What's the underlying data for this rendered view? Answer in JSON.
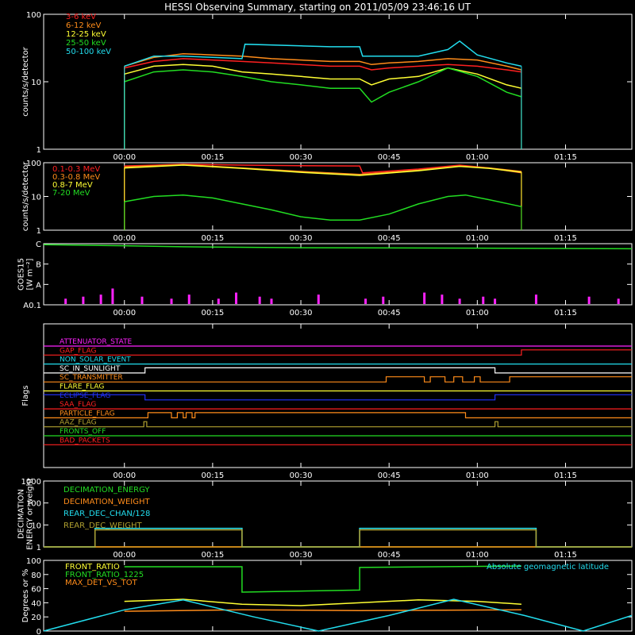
{
  "title": "HESSI Observing Summary, starting on 2011/05/09 23:46:16 UT",
  "time_axis": {
    "range_minutes": [
      -13.73,
      86.27
    ],
    "ticks": [
      {
        "label": "00:00",
        "minutes": 0
      },
      {
        "label": "00:15",
        "minutes": 15
      },
      {
        "label": "00:30",
        "minutes": 30
      },
      {
        "label": "00:45",
        "minutes": 45
      },
      {
        "label": "01:00",
        "minutes": 60
      },
      {
        "label": "01:15",
        "minutes": 75
      }
    ]
  },
  "colors": {
    "red": "#ff2020",
    "orange": "#ff8c1a",
    "yellow": "#ffff33",
    "green": "#22dd22",
    "cyan": "#22ddee",
    "magenta": "#ff22ff",
    "blue": "#2233ff",
    "olive": "#b0a030",
    "lightgreen": "#88ff66",
    "white": "#ffffff"
  },
  "chart_data": [
    {
      "type": "line",
      "ylabel": "counts/s/detector",
      "yscale": "log",
      "ylim": [
        1,
        100
      ],
      "y_ticks": [
        {
          "label": "100",
          "v": 100
        },
        {
          "label": "10",
          "v": 10
        },
        {
          "label": "1",
          "v": 1
        }
      ],
      "legend": "top-left",
      "series": [
        {
          "name": "3-6 keV",
          "color": "red",
          "x": [
            0,
            5,
            10,
            15,
            20,
            25,
            30,
            35,
            40,
            42,
            45,
            50,
            55,
            60,
            65,
            67.5
          ],
          "y": [
            16,
            20,
            22,
            21,
            20,
            19,
            18,
            17,
            17,
            15,
            16,
            17,
            18,
            17,
            15,
            14
          ]
        },
        {
          "name": "6-12 keV",
          "color": "orange",
          "x": [
            0,
            5,
            10,
            15,
            20,
            25,
            30,
            35,
            40,
            42,
            45,
            50,
            55,
            60,
            65,
            67.5
          ],
          "y": [
            17,
            23,
            26,
            25,
            24,
            22,
            21,
            20,
            20,
            18,
            19,
            20,
            22,
            21,
            17,
            15
          ]
        },
        {
          "name": "12-25 keV",
          "color": "yellow",
          "x": [
            0,
            5,
            10,
            15,
            20,
            25,
            30,
            35,
            40,
            42,
            45,
            50,
            55,
            60,
            65,
            67.5
          ],
          "y": [
            13,
            17,
            18,
            17,
            14,
            13,
            12,
            11,
            11,
            9,
            11,
            12,
            16,
            13,
            9,
            8
          ]
        },
        {
          "name": "25-50 keV",
          "color": "green",
          "x": [
            0,
            5,
            10,
            15,
            20,
            25,
            30,
            35,
            40,
            42,
            45,
            50,
            55,
            60,
            65,
            67.5
          ],
          "y": [
            10,
            14,
            15,
            14,
            12,
            10,
            9,
            8,
            8,
            5,
            7,
            10,
            16,
            12,
            7,
            6
          ]
        },
        {
          "name": "50-100 keV",
          "color": "cyan",
          "x": [
            0,
            5,
            10,
            15,
            20,
            20.5,
            30,
            35,
            40,
            40.5,
            50,
            55,
            57,
            60,
            65,
            67.5
          ],
          "y": [
            17,
            24,
            24,
            23,
            22,
            36,
            34,
            33,
            33,
            24,
            24,
            30,
            40,
            25,
            19,
            17
          ]
        }
      ]
    },
    {
      "type": "line",
      "ylabel": "counts/s/detector",
      "yscale": "log",
      "ylim": [
        1,
        100
      ],
      "y_ticks": [
        {
          "label": "100",
          "v": 100
        },
        {
          "label": "10",
          "v": 10
        },
        {
          "label": "1",
          "v": 1
        }
      ],
      "legend": "top-left",
      "series": [
        {
          "name": "0.1-0.3 MeV",
          "color": "red",
          "x": [
            0,
            10,
            20,
            30,
            40,
            40.5,
            50,
            57,
            62,
            67.5
          ],
          "y": [
            80,
            90,
            85,
            82,
            80,
            50,
            65,
            85,
            70,
            50
          ]
        },
        {
          "name": "0.3-0.8 MeV",
          "color": "orange",
          "x": [
            0,
            10,
            20,
            30,
            40,
            50,
            57,
            62,
            67.5
          ],
          "y": [
            75,
            88,
            70,
            55,
            45,
            60,
            80,
            70,
            55
          ]
        },
        {
          "name": "0.8-7 MeV",
          "color": "yellow",
          "x": [
            0,
            10,
            20,
            30,
            40,
            50,
            57,
            62,
            67.5
          ],
          "y": [
            70,
            85,
            68,
            52,
            42,
            58,
            78,
            68,
            52
          ]
        },
        {
          "name": "7-20 MeV",
          "color": "green",
          "x": [
            0,
            5,
            10,
            15,
            20,
            25,
            30,
            35,
            40,
            45,
            50,
            55,
            58,
            62,
            67.5
          ],
          "y": [
            7,
            10,
            11,
            9,
            6,
            4,
            2.5,
            2,
            2,
            3,
            6,
            10,
            11,
            8,
            5
          ]
        }
      ]
    },
    {
      "type": "line",
      "ylabel": "GOES15 [W m⁻²]",
      "y_ticks": [
        {
          "label": "C",
          "v": 4
        },
        {
          "label": "B",
          "v": 3
        },
        {
          "label": "A",
          "v": 2
        },
        {
          "label": "A0.1",
          "v": 1
        }
      ],
      "ylim": [
        1,
        4
      ],
      "series": [
        {
          "name": "GOES",
          "color": "green",
          "x": [
            -13.73,
            0,
            10,
            30,
            60,
            86.27
          ],
          "y": [
            3.95,
            3.9,
            3.85,
            3.8,
            3.78,
            3.75
          ]
        },
        {
          "name": "events",
          "color": "magenta",
          "x": [
            -10,
            -7,
            -4,
            -2,
            3,
            8,
            11,
            16,
            19,
            23,
            25,
            33,
            41,
            44,
            51,
            54,
            57,
            61,
            63,
            70,
            79,
            84
          ],
          "y": [
            1.3,
            1.4,
            1.5,
            1.8,
            1.4,
            1.3,
            1.5,
            1.3,
            1.6,
            1.4,
            1.3,
            1.5,
            1.3,
            1.4,
            1.6,
            1.5,
            1.3,
            1.4,
            1.3,
            1.5,
            1.4,
            1.3
          ]
        }
      ]
    },
    {
      "type": "line",
      "ylabel": "Flags",
      "flags": [
        {
          "name": "ATTENUATOR_STATE",
          "color": "magenta",
          "x": [
            -13.73,
            86.27
          ],
          "y": [
            0,
            0
          ]
        },
        {
          "name": "GAP_FLAG",
          "color": "red",
          "x": [
            -13.73,
            67.5,
            67.5,
            86.27
          ],
          "y": [
            0,
            0,
            1,
            1
          ]
        },
        {
          "name": "NON_SOLAR_EVENT",
          "color": "cyan",
          "x": [
            -13.73,
            86.27
          ],
          "y": [
            0,
            0
          ]
        },
        {
          "name": "SC_IN_SUNLIGHT",
          "color": "white",
          "x": [
            -13.73,
            3.5,
            3.5,
            63,
            63,
            86.27
          ],
          "y": [
            0,
            0,
            1,
            1,
            0,
            0
          ]
        },
        {
          "name": "SC_TRANSMITTER",
          "color": "orange",
          "x": [
            -13.73,
            44.5,
            44.5,
            51,
            51,
            52,
            52,
            54.5,
            54.5,
            56,
            56,
            57.5,
            57.5,
            59.5,
            59.5,
            60.5,
            60.5,
            65.5,
            65.5,
            86.27
          ],
          "y": [
            0,
            0,
            1,
            1,
            0,
            0,
            1,
            1,
            0,
            0,
            1,
            1,
            0,
            0,
            1,
            1,
            0,
            0,
            1,
            1
          ]
        },
        {
          "name": "FLARE_FLAG",
          "color": "yellow",
          "x": [
            -13.73,
            86.27
          ],
          "y": [
            0,
            0
          ]
        },
        {
          "name": "ECLIPSE_FLAG",
          "color": "blue",
          "x": [
            -13.73,
            3.5,
            3.5,
            63,
            63,
            86.27
          ],
          "y": [
            1,
            1,
            0,
            0,
            1,
            1
          ]
        },
        {
          "name": "SAA_FLAG",
          "color": "red",
          "x": [
            -13.73,
            86.27
          ],
          "y": [
            0,
            0
          ]
        },
        {
          "name": "PARTICLE_FLAG",
          "color": "orange",
          "x": [
            -13.73,
            4,
            4,
            8,
            8,
            9,
            9,
            10,
            10,
            10.5,
            10.5,
            11.5,
            11.5,
            12,
            12,
            58,
            58,
            62,
            62,
            86.27
          ],
          "y": [
            0,
            0,
            1,
            1,
            0,
            0,
            1,
            1,
            0,
            0,
            1,
            1,
            0,
            0,
            1,
            1,
            0,
            0,
            0,
            0
          ]
        },
        {
          "name": "AAZ_FLAG",
          "color": "olive",
          "x": [
            -13.73,
            3.3,
            3.3,
            3.8,
            3.8,
            63,
            63,
            63.5,
            63.5,
            86.27
          ],
          "y": [
            0,
            0,
            1,
            1,
            0,
            0,
            1,
            1,
            0,
            0
          ]
        },
        {
          "name": "FRONTS_OFF",
          "color": "green",
          "x": [
            -13.73,
            86.27
          ],
          "y": [
            0,
            0
          ]
        },
        {
          "name": "BAD_PACKETS",
          "color": "red",
          "x": [
            -13.73,
            86.27
          ],
          "y": [
            0,
            0
          ]
        }
      ]
    },
    {
      "type": "line",
      "ylabel": "DECIMATION ENERGY or weight",
      "yscale": "log",
      "ylim": [
        1,
        1000
      ],
      "y_ticks": [
        {
          "label": "1000",
          "v": 1000
        },
        {
          "label": "100",
          "v": 100
        },
        {
          "label": "10",
          "v": 10
        },
        {
          "label": "1",
          "v": 1
        }
      ],
      "series": [
        {
          "name": "DECIMATION_ENERGY",
          "color": "green",
          "x": [
            -13.73,
            86.27
          ],
          "y": [
            1,
            1
          ]
        },
        {
          "name": "DECIMATION_WEIGHT",
          "color": "orange",
          "x": [
            -13.73,
            86.27
          ],
          "y": [
            1,
            1
          ]
        },
        {
          "name": "REAR_DEC_CHAN/128",
          "color": "cyan",
          "x": [
            -13.73,
            -5,
            -5,
            20,
            20,
            40,
            40,
            70,
            70,
            86.27
          ],
          "y": [
            1,
            1,
            7,
            7,
            1,
            1,
            7,
            7,
            1,
            1
          ]
        },
        {
          "name": "REAR_DEC_WEIGHT",
          "color": "olive",
          "x": [
            -13.73,
            -5,
            -5,
            20,
            20,
            40,
            40,
            70,
            70,
            86.27
          ],
          "y": [
            1,
            1,
            6,
            6,
            1,
            1,
            6,
            6,
            1,
            1
          ]
        }
      ]
    },
    {
      "type": "line",
      "ylabel": "Degrees or %",
      "ylim": [
        0,
        100
      ],
      "y_ticks": [
        {
          "label": "100",
          "v": 100
        },
        {
          "label": "80",
          "v": 80
        },
        {
          "label": "60",
          "v": 60
        },
        {
          "label": "40",
          "v": 40
        },
        {
          "label": "20",
          "v": 20
        },
        {
          "label": "0",
          "v": 0
        }
      ],
      "series": [
        {
          "name": "FRONT_RATIO",
          "color": "yellow",
          "x": [
            0,
            10,
            20,
            30,
            40,
            50,
            60,
            67.5
          ],
          "y": [
            42,
            45,
            38,
            36,
            40,
            44,
            42,
            38
          ]
        },
        {
          "name": "FRONT_RATIO_1225",
          "color": "green",
          "x": [
            0,
            20,
            20,
            40,
            40,
            67.5
          ],
          "y": [
            91,
            91,
            55,
            58,
            90,
            92
          ]
        },
        {
          "name": "MAX_DET_VS_TOT",
          "color": "orange",
          "x": [
            0,
            20,
            40,
            67.5
          ],
          "y": [
            28,
            30,
            29,
            30
          ]
        },
        {
          "name": "Absolute geomagnetic latitude",
          "color": "cyan",
          "x": [
            -13.73,
            0,
            10,
            22,
            33,
            45,
            56,
            68,
            78,
            86.27
          ],
          "y": [
            0,
            30,
            44,
            20,
            0,
            22,
            45,
            22,
            0,
            22
          ]
        }
      ]
    }
  ]
}
